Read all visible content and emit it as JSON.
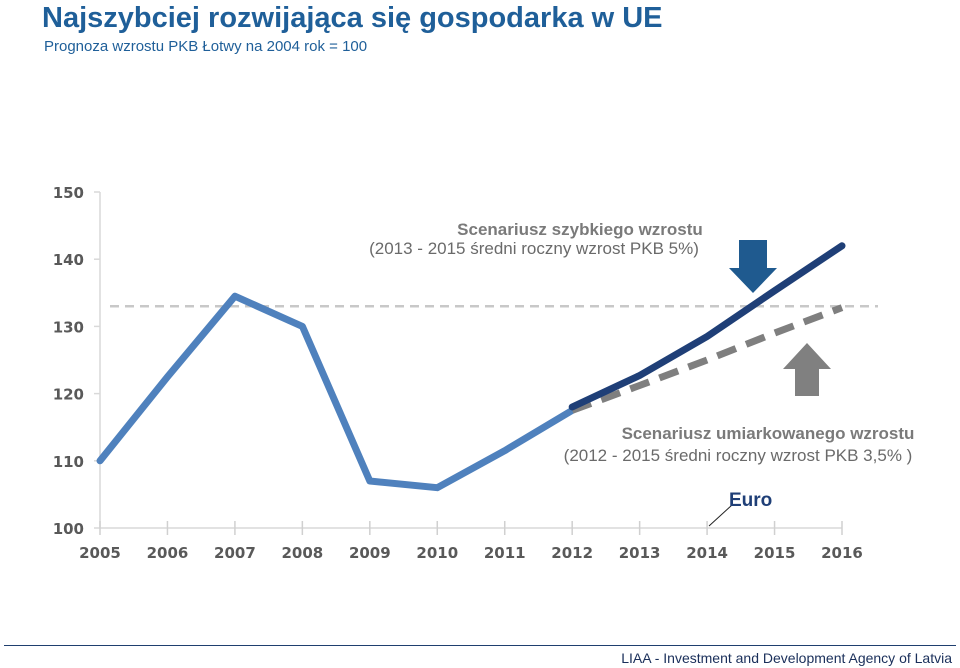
{
  "header": {
    "title": "Najszybciej rozwijająca się gospodarka w UE",
    "subtitle": "Prognoza wzrostu PKB Łotwy na  2004 rok = 100"
  },
  "footer": {
    "text": "LIAA - Investment and Development Agency of Latvia"
  },
  "colors": {
    "title": "#1f5f99",
    "historical": "#4f81bd",
    "fast": "#1f3f77",
    "moderate": "#7f7f7f",
    "arrow_fast": "#1f5a8f",
    "arrow_moderate": "#808080",
    "reference": "#c8c8c8",
    "euro": "#1f3f77"
  },
  "annotations": {
    "fast_title": "Scenariusz szybkiego wzrostu",
    "fast_detail": "(2013 - 2015 średni roczny wzrost PKB 5%)",
    "moderate_title": "Scenariusz umiarkowanego wzrostu",
    "moderate_detail": "(2012 - 2015 średni roczny wzrost PKB 3,5% )",
    "euro": "Euro"
  },
  "chart_data": {
    "type": "line",
    "x": [
      "2005",
      "2006",
      "2007",
      "2008",
      "2009",
      "2010",
      "2011",
      "2012",
      "2013",
      "2014",
      "2015",
      "2016"
    ],
    "ylim": [
      100,
      150
    ],
    "yticks": [
      100,
      110,
      120,
      130,
      140,
      150
    ],
    "grid": false,
    "reference_line": 133,
    "series": [
      {
        "key": "historical",
        "style": "solid",
        "points": [
          [
            "2005",
            110
          ],
          [
            "2006",
            122.5
          ],
          [
            "2007",
            134.5
          ],
          [
            "2008",
            130
          ],
          [
            "2009",
            107
          ],
          [
            "2010",
            106
          ],
          [
            "2011",
            111.5
          ],
          [
            "2012",
            117.5
          ]
        ]
      },
      {
        "key": "fast",
        "style": "solid",
        "points": [
          [
            "2012",
            118
          ],
          [
            "2013",
            122.7
          ],
          [
            "2014",
            128.5
          ],
          [
            "2015",
            135.3
          ],
          [
            "2016",
            142
          ]
        ]
      },
      {
        "key": "moderate",
        "style": "dashed",
        "points": [
          [
            "2012",
            117.5
          ],
          [
            "2013",
            121.2
          ],
          [
            "2014",
            125
          ],
          [
            "2015",
            129
          ],
          [
            "2016",
            132.8
          ]
        ]
      }
    ]
  }
}
